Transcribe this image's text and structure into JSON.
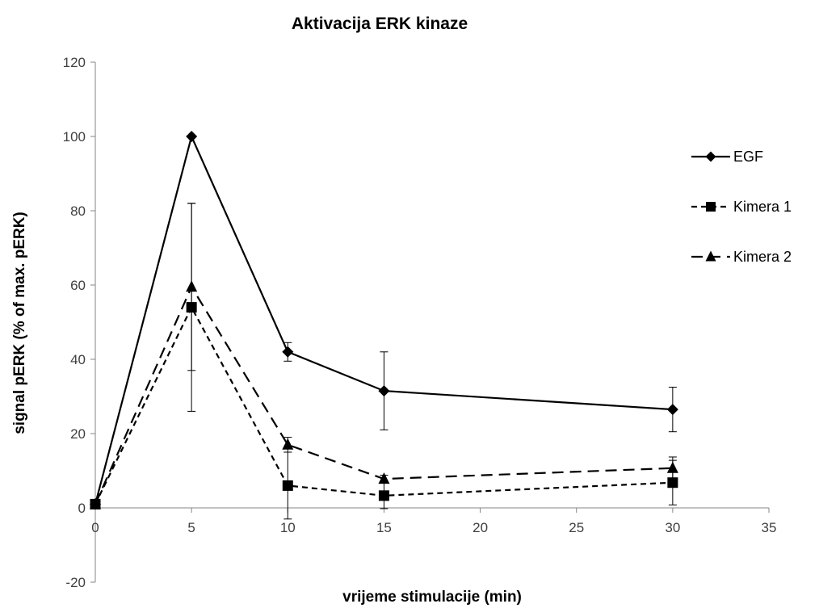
{
  "chart_data": {
    "type": "line",
    "title": "Aktivacija ERK kinaze",
    "xlabel": "vrijeme stimulacije (min)",
    "ylabel": "signal pERK (% of max.  pERK)",
    "xlim": [
      0,
      35
    ],
    "ylim": [
      -20,
      120
    ],
    "x_ticks": [
      0,
      5,
      10,
      15,
      20,
      25,
      30,
      35
    ],
    "y_ticks": [
      -20,
      0,
      20,
      40,
      60,
      80,
      100,
      120
    ],
    "grid": false,
    "legend_position": "right",
    "x": [
      0,
      5,
      10,
      15,
      30
    ],
    "series": [
      {
        "name": "EGF",
        "marker": "diamond",
        "line_style": "solid",
        "color": "#000000",
        "values": [
          1,
          100,
          42,
          31.5,
          26.5
        ],
        "error": [
          0,
          0,
          2.5,
          10.5,
          6
        ]
      },
      {
        "name": "Kimera 1",
        "marker": "square",
        "line_style": "short-dash",
        "color": "#000000",
        "values": [
          1,
          54,
          6,
          3.3,
          6.8
        ],
        "error": [
          0,
          28,
          9,
          3.5,
          6
        ]
      },
      {
        "name": "Kimera 2",
        "marker": "triangle",
        "line_style": "long-dash",
        "color": "#000000",
        "values": [
          1,
          59.5,
          17,
          7.8,
          10.7
        ],
        "error": [
          0,
          22.5,
          2,
          1,
          3
        ]
      }
    ]
  }
}
